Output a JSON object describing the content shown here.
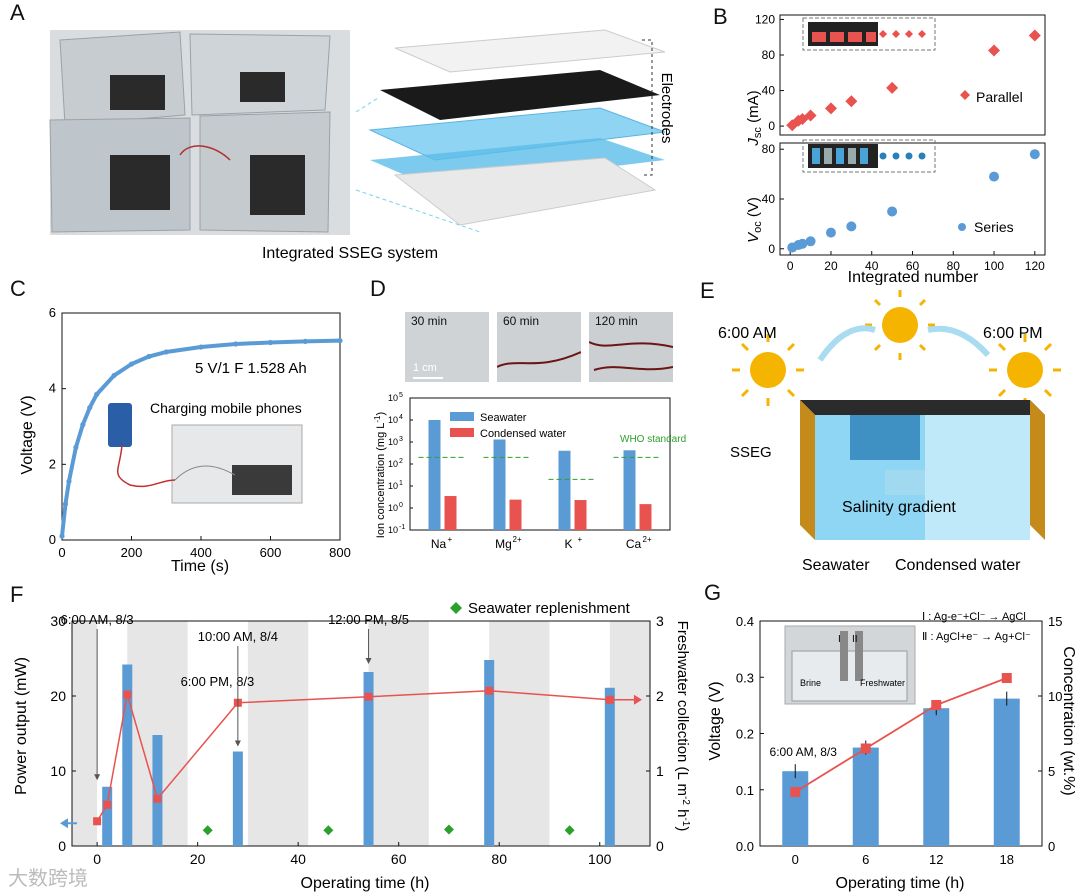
{
  "panel_letters": {
    "a": "A",
    "b": "B",
    "c": "C",
    "d": "D",
    "e": "E",
    "f": "F",
    "g": "G"
  },
  "panel_a": {
    "caption": "Integrated SSEG system",
    "electrodes_label": "Electrodes"
  },
  "panel_b": {
    "xlabel": "Integrated number",
    "top_ylabel": "J",
    "top_ylabel_sub": "sc",
    "top_ylabel_unit": " (mA)",
    "bottom_ylabel": "V",
    "bottom_ylabel_sub": "oc",
    "bottom_ylabel_unit": " (V)",
    "legend_parallel": "Parallel",
    "legend_series": "Series",
    "x_ticks": [
      "0",
      "20",
      "40",
      "60",
      "80",
      "100",
      "120"
    ],
    "top_y_ticks": [
      "0",
      "40",
      "80",
      "120"
    ],
    "bottom_y_ticks": [
      "0",
      "40",
      "80"
    ]
  },
  "panel_c": {
    "xlabel": "Time (s)",
    "ylabel": "Voltage (V)",
    "annotation": "5 V/1 F  1.528 Ah",
    "inset_label": "Charging mobile phones",
    "x_ticks": [
      "0",
      "200",
      "400",
      "600",
      "800"
    ],
    "y_ticks": [
      "0",
      "2",
      "4",
      "6"
    ]
  },
  "panel_d": {
    "photo_labels": [
      "30 min",
      "60 min",
      "120 min"
    ],
    "scale_label": "1 cm",
    "ylabel": "Ion concentration (mg L",
    "ylabel_sup": "-1",
    "ylabel_end": ")",
    "legend_seawater": "Seawater",
    "legend_condensed": "Condensed water",
    "who_label": "WHO standard",
    "ions": [
      "Na",
      "Mg",
      "K",
      "Ca"
    ],
    "ion_sups": [
      "+",
      "2+",
      "+",
      "2+"
    ],
    "y_ticks": [
      "10",
      "10",
      "10",
      "10",
      "10",
      "10",
      "10"
    ],
    "y_tick_sups": [
      "-1",
      "0",
      "1",
      "2",
      "3",
      "4",
      "5"
    ]
  },
  "panel_e": {
    "morning": "6:00 AM",
    "evening": "6:00 PM",
    "sseg": "SSEG",
    "gradient": "Salinity gradient",
    "seawater": "Seawater",
    "condensed": "Condensed water"
  },
  "panel_f": {
    "xlabel": "Operating time (h)",
    "ylabel_left": "Power output (mW)",
    "ylabel_right": "Freshwater collection (L m",
    "ylabel_right_sup1": "-2",
    "ylabel_right_mid": " h",
    "ylabel_right_sup2": "-1",
    "ylabel_right_end": ")",
    "legend": "Seawater replenishment",
    "annotations": [
      "6:00 AM, 8/3",
      "6:00 PM, 8/3",
      "10:00 AM, 8/4",
      "12:00 PM, 8/5"
    ],
    "x_ticks": [
      "0",
      "20",
      "40",
      "60",
      "80",
      "100"
    ],
    "y_left_ticks": [
      "0",
      "10",
      "20",
      "30"
    ],
    "y_right_ticks": [
      "0",
      "1",
      "2",
      "3"
    ]
  },
  "panel_g": {
    "xlabel": "Operating time (h)",
    "ylabel_left": "Voltage (V)",
    "ylabel_right": "Concentration (wt.%)",
    "annotation": "6:00 AM, 8/3",
    "reaction1": "Ⅰ : Ag-e⁻+Cl⁻ → AgCl",
    "reaction2": "Ⅱ : AgCl+e⁻ → Ag+Cl⁻",
    "inset_brine": "Brine",
    "inset_fresh": "Freshwater",
    "inset_i": "I",
    "inset_ii": "II",
    "x_ticks": [
      "0",
      "6",
      "12",
      "18"
    ],
    "y_left_ticks": [
      "0.0",
      "0.1",
      "0.2",
      "0.3",
      "0.4"
    ],
    "y_right_ticks": [
      "0",
      "5",
      "10",
      "15"
    ]
  },
  "watermark": "大数跨境",
  "colors": {
    "blue": "#5b9bd5",
    "bar_blue": "#5b9bd5",
    "red": "#e8524f",
    "green": "#2ca02c",
    "gray_band": "#e6e6e6",
    "line_red": "#e8524f"
  },
  "chart_data": [
    {
      "id": "B-top",
      "type": "scatter",
      "title": "",
      "xlabel": "Integrated number",
      "ylabel": "Jsc (mA)",
      "x": [
        1,
        4,
        6,
        10,
        20,
        30,
        50,
        100,
        120
      ],
      "series": [
        {
          "name": "Parallel",
          "values": [
            1,
            6,
            8,
            12,
            20,
            28,
            43,
            85,
            102
          ]
        }
      ],
      "xlim": [
        -5,
        125
      ],
      "ylim": [
        -10,
        125
      ]
    },
    {
      "id": "B-bottom",
      "type": "scatter",
      "title": "",
      "xlabel": "Integrated number",
      "ylabel": "Voc (V)",
      "x": [
        1,
        4,
        6,
        10,
        20,
        30,
        50,
        100,
        120
      ],
      "series": [
        {
          "name": "Series",
          "values": [
            1,
            3,
            4,
            6,
            13,
            18,
            30,
            58,
            76
          ]
        }
      ],
      "xlim": [
        -5,
        125
      ],
      "ylim": [
        -5,
        85
      ]
    },
    {
      "id": "C",
      "type": "line",
      "title": "",
      "xlabel": "Time (s)",
      "ylabel": "Voltage (V)",
      "x": [
        0,
        10,
        20,
        40,
        60,
        80,
        100,
        150,
        200,
        250,
        300,
        400,
        500,
        600,
        700,
        800
      ],
      "series": [
        {
          "name": "",
          "values": [
            0.1,
            0.95,
            1.55,
            2.45,
            3.05,
            3.5,
            3.85,
            4.35,
            4.65,
            4.85,
            4.97,
            5.1,
            5.18,
            5.22,
            5.25,
            5.27
          ]
        }
      ],
      "xlim": [
        0,
        800
      ],
      "ylim": [
        0,
        6
      ]
    },
    {
      "id": "D",
      "type": "bar",
      "title": "",
      "xlabel": "",
      "ylabel": "Ion concentration (mg L-1)",
      "scale": "log",
      "categories": [
        "Na+",
        "Mg2+",
        "K+",
        "Ca2+"
      ],
      "series": [
        {
          "name": "Seawater",
          "values": [
            10000,
            1300,
            400,
            420
          ]
        },
        {
          "name": "Condensed water",
          "values": [
            3.5,
            2.4,
            2.3,
            1.5
          ]
        }
      ],
      "who_standard": [
        200,
        200,
        20,
        200
      ],
      "ylim": [
        0.1,
        100000
      ]
    },
    {
      "id": "F",
      "type": "bar",
      "title": "",
      "xlabel": "Operating time (h)",
      "ylabel": "Power output (mW)",
      "ylabel_right": "Freshwater collection (L m-2 h-1)",
      "bars_x": [
        2,
        6,
        12,
        28,
        54,
        78,
        102
      ],
      "series": [
        {
          "name": "Power output",
          "values": [
            7.9,
            24.2,
            14.8,
            12.6,
            23.2,
            24.8,
            21.1
          ]
        },
        {
          "name": "Freshwater collection",
          "axis": "right",
          "x": [
            0,
            2,
            6,
            12,
            28,
            54,
            78,
            102
          ],
          "values": [
            0.33,
            0.55,
            2.02,
            0.63,
            1.91,
            1.99,
            2.07,
            1.95
          ]
        },
        {
          "name": "Seawater replenishment",
          "x": [
            22,
            46,
            70,
            94
          ],
          "values": [
            0.21,
            0.21,
            0.22,
            0.21
          ]
        }
      ],
      "day_bands": [
        [
          -12,
          0
        ],
        [
          6,
          18
        ],
        [
          30,
          42
        ],
        [
          54,
          66
        ],
        [
          78,
          90
        ],
        [
          102,
          114
        ]
      ],
      "xlim": [
        -5,
        110
      ],
      "ylim": [
        0,
        30
      ],
      "ylim_right": [
        0,
        3
      ]
    },
    {
      "id": "G",
      "type": "bar",
      "title": "",
      "xlabel": "Operating time (h)",
      "ylabel": "Voltage (V)",
      "ylabel_right": "Concentration (wt.%)",
      "categories": [
        "0",
        "6",
        "12",
        "18"
      ],
      "series": [
        {
          "name": "Voltage",
          "values": [
            0.133,
            0.175,
            0.245,
            0.262
          ]
        },
        {
          "name": "Concentration",
          "axis": "right",
          "values": [
            3.6,
            6.5,
            9.4,
            11.2
          ]
        }
      ],
      "ylim": [
        0,
        0.4
      ],
      "ylim_right": [
        0,
        15
      ]
    }
  ]
}
